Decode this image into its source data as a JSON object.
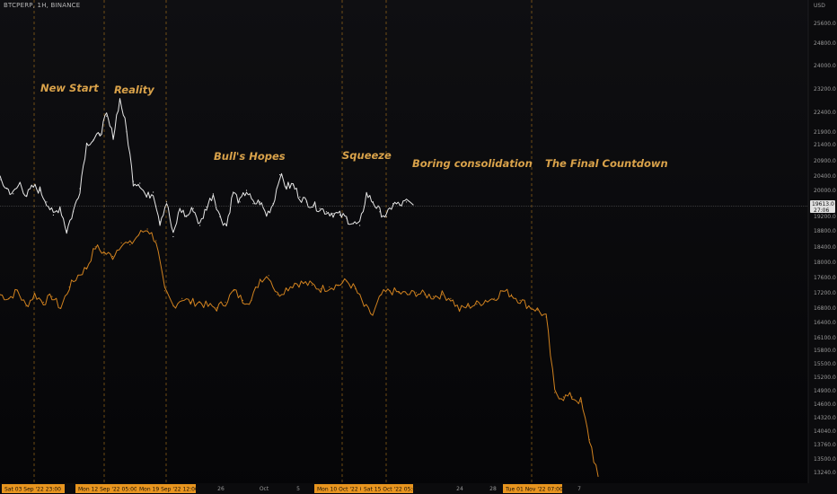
{
  "header": {
    "symbol_line": "BTCPERP, 1H, BINANCE"
  },
  "price_axis": {
    "currency": "USD",
    "current_price": "19613.0",
    "countdown": "27:06",
    "ticks": [
      "25600.0",
      "24800.0",
      "24000.0",
      "23200.0",
      "22400.0",
      "21900.0",
      "21400.0",
      "20900.0",
      "20400.0",
      "20000.0",
      "19200.0",
      "18800.0",
      "18400.0",
      "18000.0",
      "17600.0",
      "17200.0",
      "16800.0",
      "16400.0",
      "16100.0",
      "15800.0",
      "15500.0",
      "15200.0",
      "14900.0",
      "14600.0",
      "14320.0",
      "14040.0",
      "13760.0",
      "13500.0",
      "13240.0"
    ]
  },
  "time_axis": {
    "plain_ticks": [
      "26",
      "Oct",
      "5",
      "24",
      "28",
      "7"
    ],
    "tagged_ticks": [
      "Sat 03 Sep '22  23:00",
      "Mon 12 Sep '22  05:00",
      "Mon 19 Sep '22  12:00",
      "Mon 10 Oct '22  0",
      "Sat 15 Oct '22  05:00",
      "Tue 01 Nov '22  07:00"
    ]
  },
  "annotations": [
    "New Start",
    "Reality",
    "Bull's Hopes",
    "Squeeze",
    "Boring consolidation",
    "The Final Countdown"
  ],
  "colors": {
    "background": "#0c0c0f",
    "white_series": "#e6e6e6",
    "orange_series": "#d1821f",
    "annotation": "#d9a24a",
    "marker_line": "#c8871f"
  },
  "chart_data": {
    "type": "line",
    "title": "",
    "xlabel": "",
    "ylabel": "USD",
    "ylim": [
      13000,
      26000
    ],
    "series": [
      {
        "values": [
          20350,
          20100,
          19950,
          20250,
          19900,
          20150,
          20050,
          19700,
          19300,
          19550,
          18850,
          19400,
          20100,
          21500,
          21650,
          21900,
          22350,
          21800,
          22900,
          21950,
          20300,
          20250,
          19850,
          20000,
          19100,
          19700,
          18700,
          19500,
          19250,
          19500,
          19000,
          19550,
          19950,
          19250,
          19000,
          20000,
          19700,
          20050,
          19650,
          19700,
          19300,
          19650,
          20500,
          20150,
          20200,
          19850,
          19700,
          19600,
          19500,
          19400,
          19350,
          19300,
          19200,
          19050,
          19000,
          19950,
          19700,
          19400,
          19250,
          19650,
          19600,
          19700,
          19613
        ]
      },
      {
        "values": [
          17200,
          17100,
          17300,
          16900,
          17200,
          17000,
          17150,
          16850,
          17400,
          17700,
          17900,
          18450,
          18300,
          18200,
          18550,
          18500,
          18750,
          18900,
          18600,
          17300,
          16900,
          17100,
          17000,
          17000,
          16900,
          16850,
          17000,
          17300,
          17050,
          17050,
          17600,
          17700,
          17200,
          17350,
          17500,
          17500,
          17450,
          17350,
          17400,
          17450,
          17550,
          17350,
          16900,
          16650,
          17200,
          17300,
          17250,
          17200,
          17250,
          17200,
          17150,
          17200,
          17100,
          16800,
          16900,
          16950,
          17050,
          17100,
          17300,
          17200,
          17050,
          16900,
          16800,
          16600,
          14900,
          14800,
          14800,
          14700,
          13900,
          13200
        ]
      }
    ]
  }
}
